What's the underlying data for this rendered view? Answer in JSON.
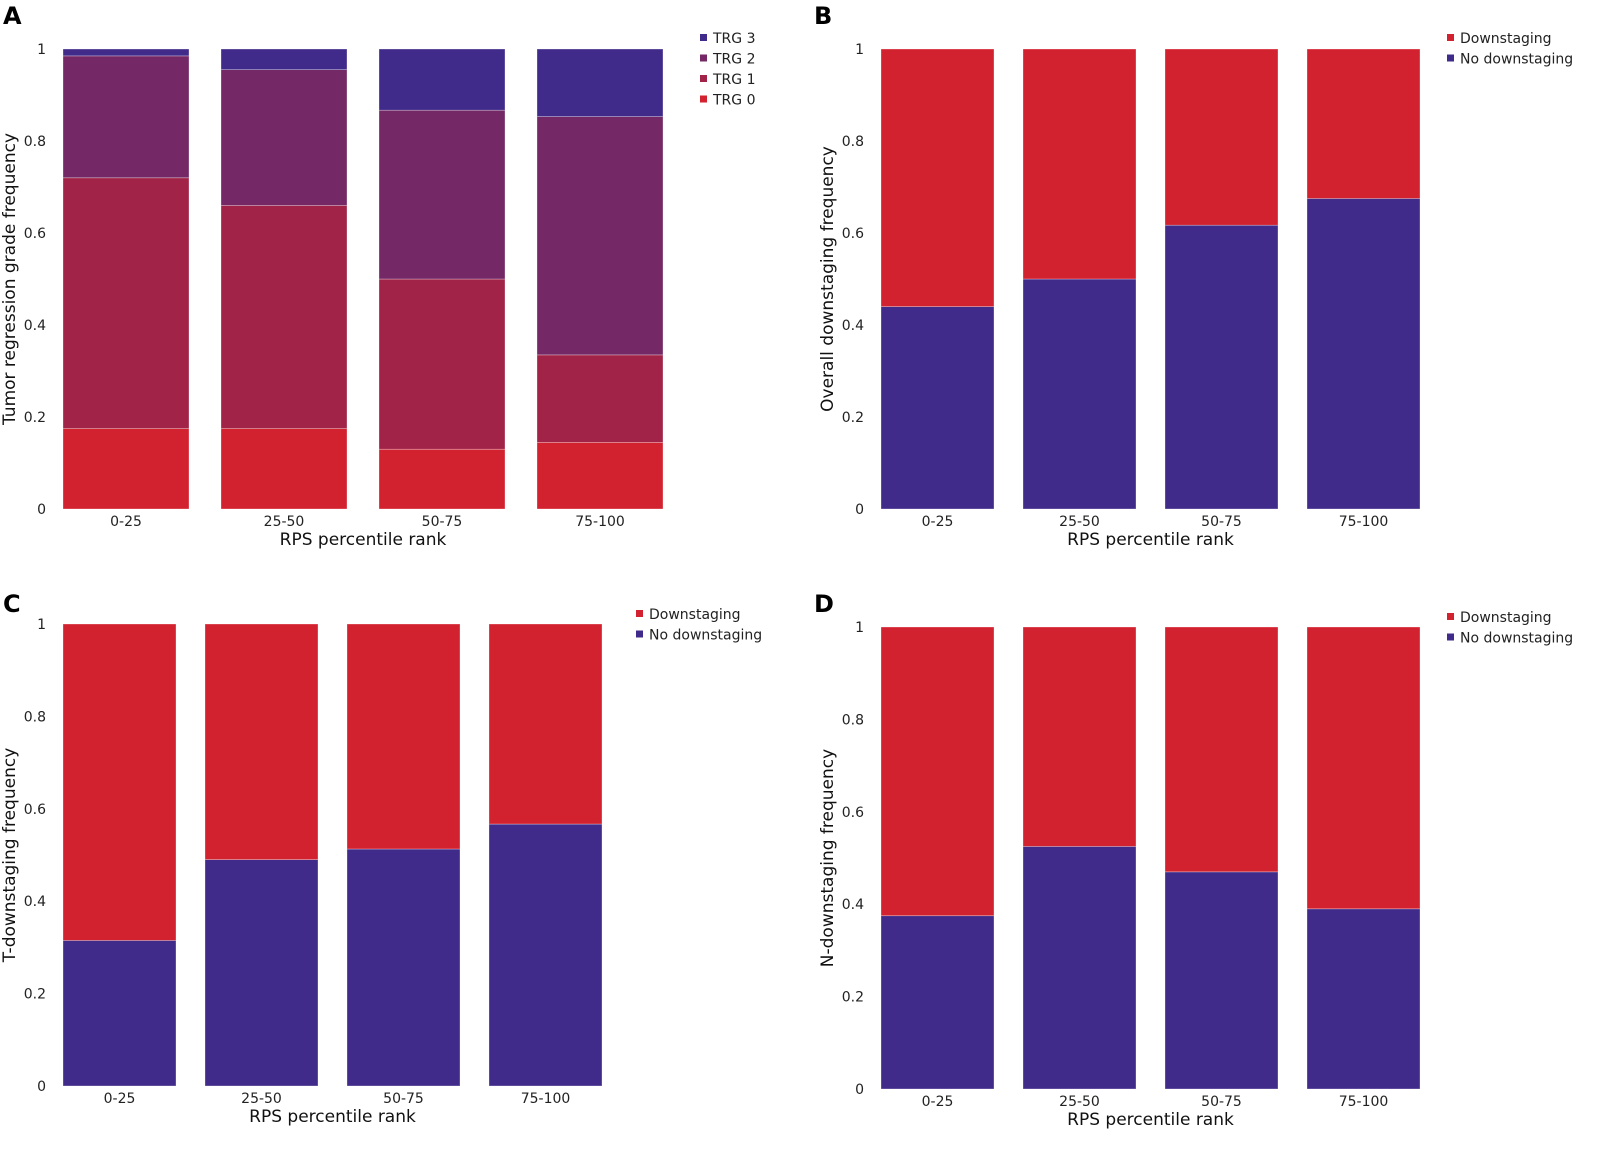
{
  "chart_data": [
    {
      "panel": "A",
      "type": "bar",
      "stacked": true,
      "title": "",
      "xlabel": "RPS percentile rank",
      "ylabel": "Tumor regression grade frequency",
      "categories": [
        "0-25",
        "25-50",
        "50-75",
        "75-100"
      ],
      "ylim": [
        0,
        1
      ],
      "yticks": [
        "0",
        "0.2",
        "0.4",
        "0.6",
        "0.8",
        "1"
      ],
      "legend_position": "top-right",
      "legend_order": [
        "TRG 3",
        "TRG 2",
        "TRG 1",
        "TRG 0"
      ],
      "series": [
        {
          "name": "TRG 0",
          "color": "#d3222f",
          "values": [
            0.175,
            0.175,
            0.13,
            0.145
          ]
        },
        {
          "name": "TRG 1",
          "color": "#a12347",
          "values": [
            0.545,
            0.485,
            0.37,
            0.19
          ]
        },
        {
          "name": "TRG 2",
          "color": "#742866",
          "values": [
            0.265,
            0.295,
            0.367,
            0.518
          ]
        },
        {
          "name": "TRG 3",
          "color": "#412b8a",
          "values": [
            0.015,
            0.045,
            0.133,
            0.147
          ]
        }
      ]
    },
    {
      "panel": "B",
      "type": "bar",
      "stacked": true,
      "title": "",
      "xlabel": "RPS percentile rank",
      "ylabel": "Overall downstaging frequency",
      "categories": [
        "0-25",
        "25-50",
        "50-75",
        "75-100"
      ],
      "ylim": [
        0,
        1
      ],
      "yticks": [
        "0",
        "0.2",
        "0.4",
        "0.6",
        "0.8",
        "1"
      ],
      "legend_position": "top-right",
      "legend_order": [
        "Downstaging",
        "No downstaging"
      ],
      "series": [
        {
          "name": "No downstaging",
          "color": "#412b8a",
          "values": [
            0.44,
            0.5,
            0.617,
            0.675
          ]
        },
        {
          "name": "Downstaging",
          "color": "#d3222f",
          "values": [
            0.56,
            0.5,
            0.383,
            0.325
          ]
        }
      ]
    },
    {
      "panel": "C",
      "type": "bar",
      "stacked": true,
      "title": "",
      "xlabel": "RPS percentile rank",
      "ylabel": "T-downstaging frequency",
      "categories": [
        "0-25",
        "25-50",
        "50-75",
        "75-100"
      ],
      "ylim": [
        0,
        1
      ],
      "yticks": [
        "0",
        "0.2",
        "0.4",
        "0.6",
        "0.8",
        "1"
      ],
      "legend_position": "top-right",
      "legend_order": [
        "Downstaging",
        "No downstaging"
      ],
      "series": [
        {
          "name": "No downstaging",
          "color": "#412b8a",
          "values": [
            0.315,
            0.49,
            0.513,
            0.567
          ]
        },
        {
          "name": "Downstaging",
          "color": "#d3222f",
          "values": [
            0.685,
            0.51,
            0.487,
            0.433
          ]
        }
      ]
    },
    {
      "panel": "D",
      "type": "bar",
      "stacked": true,
      "title": "",
      "xlabel": "RPS percentile rank",
      "ylabel": "N-downstaging frequency",
      "categories": [
        "0-25",
        "25-50",
        "50-75",
        "75-100"
      ],
      "ylim": [
        0,
        1
      ],
      "yticks": [
        "0",
        "0.2",
        "0.4",
        "0.6",
        "0.8",
        "1"
      ],
      "legend_position": "top-right",
      "legend_order": [
        "Downstaging",
        "No downstaging"
      ],
      "series": [
        {
          "name": "No downstaging",
          "color": "#412b8a",
          "values": [
            0.375,
            0.525,
            0.47,
            0.39
          ]
        },
        {
          "name": "Downstaging",
          "color": "#d3222f",
          "values": [
            0.625,
            0.475,
            0.53,
            0.61
          ]
        }
      ]
    }
  ]
}
